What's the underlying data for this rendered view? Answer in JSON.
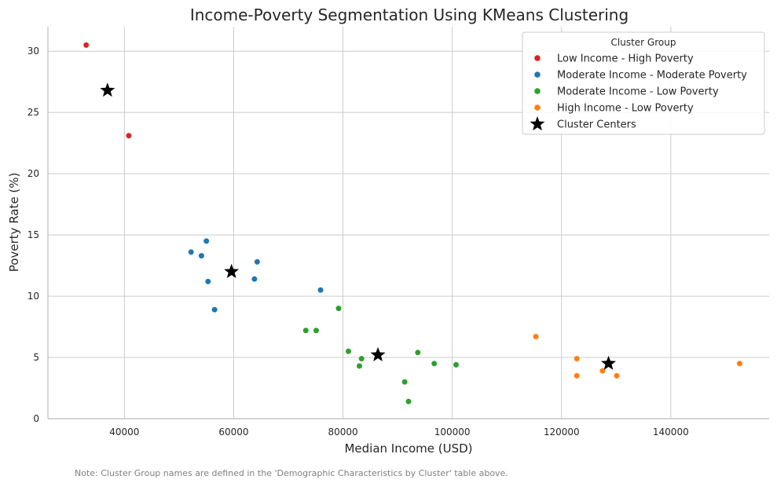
{
  "note": "Note: Cluster Group names are defined in the 'Demographic Characteristics by Cluster' table above.",
  "chart_data": {
    "type": "scatter",
    "title": "Income-Poverty Segmentation Using KMeans Clustering",
    "xlabel": "Median Income (USD)",
    "ylabel": "Poverty Rate (%)",
    "xlim": [
      26000,
      158000
    ],
    "ylim": [
      0,
      32
    ],
    "xticks": [
      40000,
      60000,
      80000,
      100000,
      120000,
      140000
    ],
    "yticks": [
      0,
      5,
      10,
      15,
      20,
      25,
      30
    ],
    "grid": true,
    "legend_title": "Cluster Group",
    "legend_position": "top-right",
    "series": [
      {
        "name": "Low Income - High Poverty",
        "color": "#d62728",
        "points": [
          [
            33000,
            30.5
          ],
          [
            40800,
            23.1
          ]
        ]
      },
      {
        "name": "Moderate Income - Moderate Poverty",
        "color": "#1f77b4",
        "points": [
          [
            52200,
            13.6
          ],
          [
            54100,
            13.3
          ],
          [
            55000,
            14.5
          ],
          [
            55300,
            11.2
          ],
          [
            56500,
            8.9
          ],
          [
            63800,
            11.4
          ],
          [
            64300,
            12.8
          ],
          [
            75900,
            10.5
          ]
        ]
      },
      {
        "name": "Moderate Income - Low Poverty",
        "color": "#2ca02c",
        "points": [
          [
            73200,
            7.2
          ],
          [
            75100,
            7.2
          ],
          [
            79200,
            9.0
          ],
          [
            81000,
            5.5
          ],
          [
            83000,
            4.3
          ],
          [
            83400,
            4.9
          ],
          [
            91300,
            3.0
          ],
          [
            92000,
            1.4
          ],
          [
            93700,
            5.4
          ],
          [
            96700,
            4.5
          ],
          [
            100700,
            4.4
          ]
        ]
      },
      {
        "name": "High Income - Low Poverty",
        "color": "#ff7f0e",
        "points": [
          [
            115300,
            6.7
          ],
          [
            122800,
            4.9
          ],
          [
            122800,
            3.5
          ],
          [
            127500,
            3.9
          ],
          [
            130100,
            3.5
          ],
          [
            152600,
            4.5
          ]
        ]
      }
    ],
    "centers": {
      "name": "Cluster Centers",
      "color": "#000000",
      "marker": "star",
      "points": [
        [
          36900,
          26.8
        ],
        [
          59600,
          12.0
        ],
        [
          86400,
          5.2
        ],
        [
          128600,
          4.5
        ]
      ]
    }
  }
}
